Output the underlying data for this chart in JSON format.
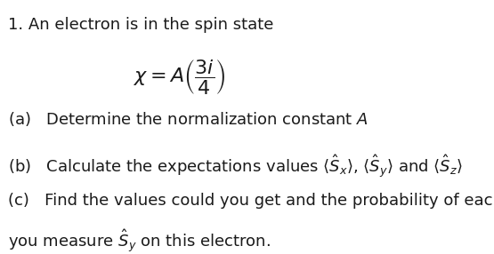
{
  "background_color": "#ffffff",
  "text_color": "#1a1a1a",
  "line1": "1. An electron is in the spin state",
  "formula": "$\\chi = A\\left(\\dfrac{3i}{4}\\right)$",
  "part_a": "(a)   Determine the normalization constant $A$",
  "part_b_prefix": "(b)   Calculate the expectations values $\\langle\\hat{S}_x\\rangle$, $\\langle\\hat{S}_y\\rangle$ and $\\langle\\hat{S}_z\\rangle$",
  "part_c_line1": "(c)   Find the values could you get and the probability of each if",
  "part_c_line2": "you measure $\\hat{S}_y$ on this electron.",
  "font_size_main": 13,
  "font_size_formula": 16
}
